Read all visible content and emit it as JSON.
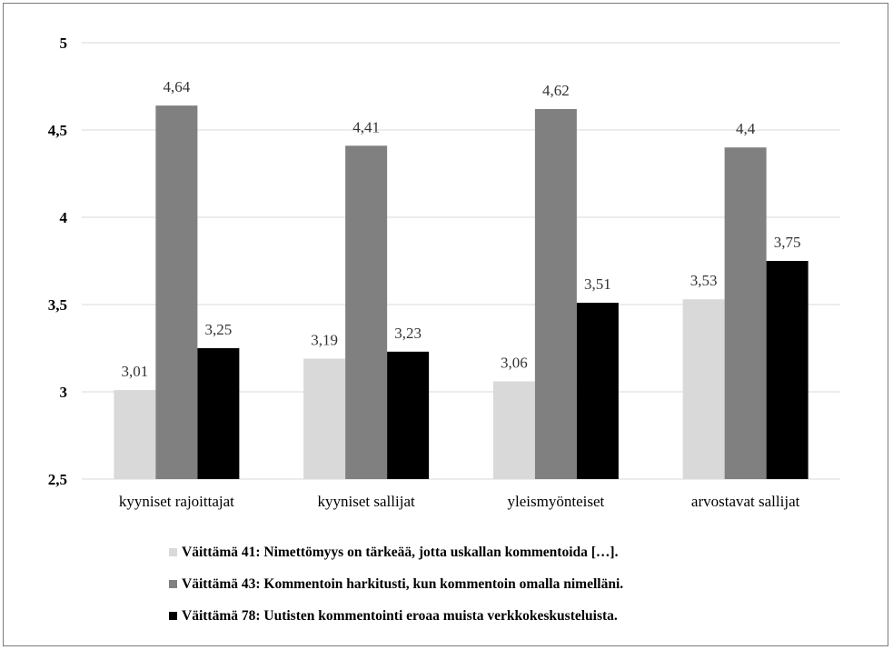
{
  "chart_data": {
    "type": "bar",
    "title": "",
    "xlabel": "",
    "ylabel": "",
    "categories": [
      "kyyniset rajoittajat",
      "kyyniset sallijat",
      "yleismyönteiset",
      "arvostavat sallijat"
    ],
    "ylim": [
      2.5,
      5
    ],
    "yticks": [
      "2,5",
      "3",
      "3,5",
      "4",
      "4,5",
      "5"
    ],
    "ytick_values": [
      2.5,
      3,
      3.5,
      4,
      4.5,
      5
    ],
    "grid": true,
    "legend_position": "bottom",
    "series": [
      {
        "name": "Väittämä 41: Nimettömyys on tärkeää, jotta uskallan kommentoida […].",
        "color": "#d9d9d9",
        "values": [
          3.01,
          3.19,
          3.06,
          3.53
        ],
        "labels": [
          "3,01",
          "3,19",
          "3,06",
          "3,53"
        ]
      },
      {
        "name": "Väittämä 43: Kommentoin harkitusti, kun kommentoin omalla nimelläni.",
        "color": "#808080",
        "values": [
          4.64,
          4.41,
          4.62,
          4.4
        ],
        "labels": [
          "4,64",
          "4,41",
          "4,62",
          "4,4"
        ]
      },
      {
        "name": "Väittämä 78: Uutisten kommentointi eroaa muista verkkokeskusteluista.",
        "color": "#000000",
        "values": [
          3.25,
          3.23,
          3.51,
          3.75
        ],
        "labels": [
          "3,25",
          "3,23",
          "3,51",
          "3,75"
        ]
      }
    ]
  }
}
